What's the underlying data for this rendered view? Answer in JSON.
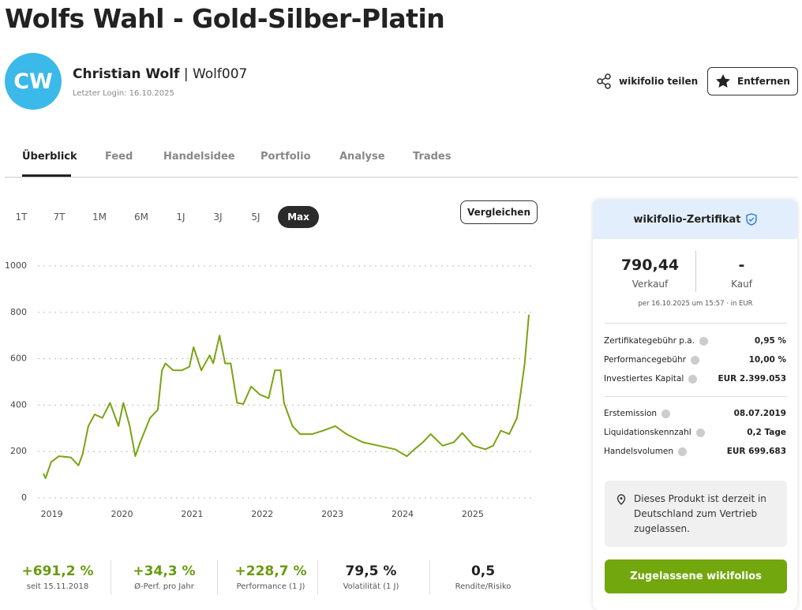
{
  "header": {
    "title": "Wolfs Wahl - Gold-Silber-Platin",
    "avatar": "CW",
    "name": "Christian Wolf",
    "separator": "|",
    "username": "Wolf007",
    "last_login": "Letzter Login: 16.10.2025"
  },
  "actions": {
    "share": "wikifolio teilen",
    "remove": "Entfernen"
  },
  "tabs": [
    "Überblick",
    "Feed",
    "Handelsidee",
    "Portfolio",
    "Analyse",
    "Trades"
  ],
  "ranges": [
    "1T",
    "7T",
    "1M",
    "6M",
    "1J",
    "3J",
    "5J",
    "Max"
  ],
  "compare": "Vergleichen",
  "chart": {
    "type": "line",
    "color": "#7aa312",
    "x": [
      2018.88,
      2018.91,
      2018.99,
      2019.1,
      2019.27,
      2019.38,
      2019.44,
      2019.52,
      2019.61,
      2019.72,
      2019.83,
      2019.95,
      2020.02,
      2020.11,
      2020.19,
      2020.26,
      2020.4,
      2020.51,
      2020.57,
      2020.62,
      2020.73,
      2020.85,
      2020.96,
      2021.02,
      2021.13,
      2021.25,
      2021.3,
      2021.39,
      2021.47,
      2021.55,
      2021.64,
      2021.73,
      2021.84,
      2021.97,
      2022.09,
      2022.18,
      2022.26,
      2022.31,
      2022.43,
      2022.54,
      2022.71,
      2022.87,
      2023.04,
      2023.2,
      2023.43,
      2023.66,
      2023.89,
      2024.06,
      2024.17,
      2024.29,
      2024.4,
      2024.57,
      2024.73,
      2024.85,
      2025.01,
      2025.18,
      2025.29,
      2025.4,
      2025.52,
      2025.63,
      2025.68,
      2025.74,
      2025.8
    ],
    "values": [
      105,
      85,
      155,
      180,
      175,
      140,
      190,
      310,
      360,
      345,
      410,
      310,
      410,
      310,
      180,
      240,
      345,
      380,
      550,
      580,
      550,
      550,
      565,
      650,
      550,
      615,
      580,
      700,
      580,
      580,
      410,
      405,
      480,
      445,
      430,
      550,
      550,
      410,
      310,
      275,
      275,
      290,
      310,
      275,
      240,
      225,
      210,
      180,
      210,
      240,
      275,
      225,
      240,
      280,
      225,
      210,
      225,
      290,
      275,
      345,
      445,
      580,
      790
    ],
    "xlim": [
      2018.88,
      2025.8
    ],
    "xticks": [
      2019,
      2020,
      2021,
      2022,
      2023,
      2024,
      2025
    ],
    "ylim": [
      0,
      1000
    ],
    "yticks": [
      0,
      200,
      400,
      600,
      800,
      1000
    ],
    "grid": true
  },
  "stats": [
    {
      "value": "+691,2 %",
      "label": "seit 15.11.2018"
    },
    {
      "value": "+34,3 %",
      "label": "Ø-Perf. pro Jahr"
    },
    {
      "value": "+228,7 %",
      "label": "Performance (1 J)"
    },
    {
      "value": "79,5 %",
      "label": "Volatilität (1 J)"
    },
    {
      "value": "0,5",
      "label": "Rendite/Risiko"
    }
  ],
  "certificate": {
    "title": "wikifolio-Zertifikat",
    "sell_value": "790,44",
    "sell_label": "Verkauf",
    "buy_value": "-",
    "buy_label": "Kauf",
    "timestamp": "per 16.10.2025 um 15:57 · in EUR",
    "fees": [
      {
        "label": "Zertifikategebühr p.a.",
        "value": "0,95 %"
      },
      {
        "label": "Performancegebühr",
        "value": "10,00 %"
      },
      {
        "label": "Investiertes Kapital",
        "value": "EUR 2.399.053"
      }
    ],
    "details": [
      {
        "label": "Erstemission",
        "value": "08.07.2019"
      },
      {
        "label": "Liquidationskennzahl",
        "value": "0,2 Tage"
      },
      {
        "label": "Handelsvolumen",
        "value": "EUR 699.683"
      }
    ],
    "notice": "Dieses Produkt ist derzeit in Deutschland zum Vertrieb zugelassen.",
    "button": "Zugelassene wikifolios"
  }
}
